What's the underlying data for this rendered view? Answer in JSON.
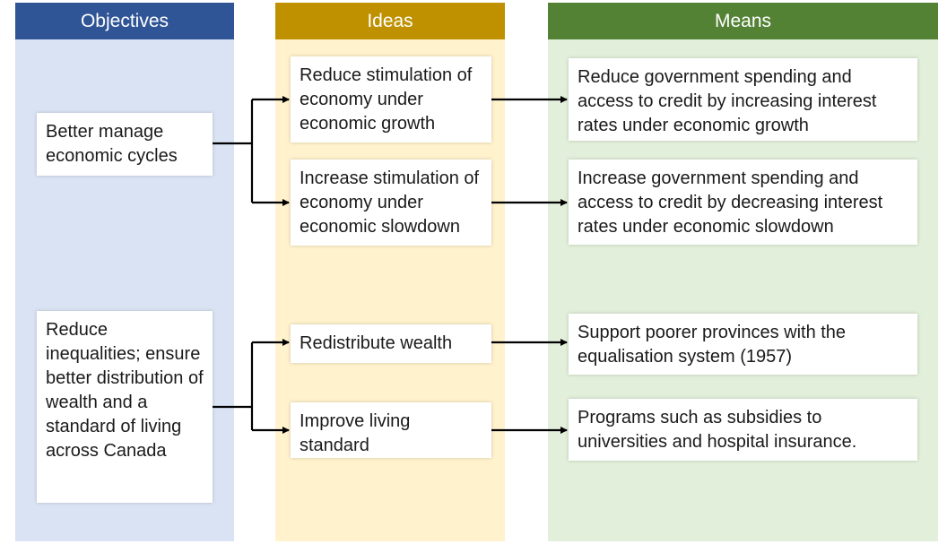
{
  "columns": {
    "objectives": "Objectives",
    "ideas": "Ideas",
    "means": "Means"
  },
  "objectives": [
    "Better manage economic cycles",
    "Reduce inequalities; ensure better distribution of wealth and a standard of living across Canada"
  ],
  "ideas": [
    "Reduce stimulation of economy under economic growth",
    "Increase stimulation of economy under economic slowdown",
    "Redistribute wealth",
    "Improve living standard"
  ],
  "means": [
    "Reduce government spending and access to credit by increasing interest rates under economic growth",
    "Increase government spending and access to credit by decreasing interest rates under economic slowdown",
    "Support poorer provinces with the equalisation system (1957)",
    "Programs such as subsidies to universities and hospital insurance."
  ],
  "colors": {
    "objectives_header": "#2f5597",
    "objectives_bg": "#dae3f3",
    "ideas_header": "#bf9000",
    "ideas_bg": "#fff2cc",
    "means_header": "#548235",
    "means_bg": "#e2efda",
    "connector": "#000000"
  }
}
